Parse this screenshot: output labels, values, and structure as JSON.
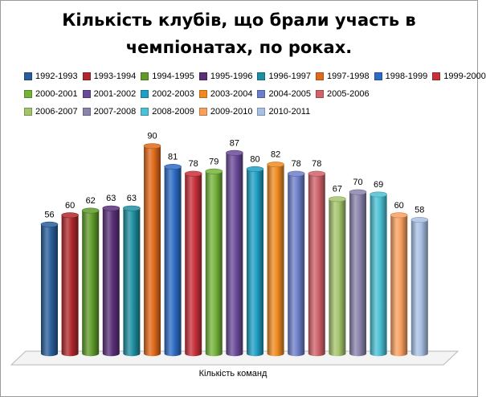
{
  "chart_data": {
    "type": "bar",
    "title": "Кількість клубів, що брали участь в чемпіонатах, по роках.",
    "xlabel": "Кількість команд",
    "ylabel": "",
    "ylim": [
      0,
      100
    ],
    "grid": false,
    "legend_position": "top",
    "categories": [
      "Кількість команд"
    ],
    "series": [
      {
        "name": "1992-1993",
        "values": [
          56
        ],
        "color": "#2a5e9a"
      },
      {
        "name": "1993-1994",
        "values": [
          60
        ],
        "color": "#b0282c"
      },
      {
        "name": "1994-1995",
        "values": [
          62
        ],
        "color": "#5f9a2a"
      },
      {
        "name": "1995-1996",
        "values": [
          63
        ],
        "color": "#5a2f78"
      },
      {
        "name": "1996-1997",
        "values": [
          63
        ],
        "color": "#1f8ea0"
      },
      {
        "name": "1997-1998",
        "values": [
          90
        ],
        "color": "#e06a1a"
      },
      {
        "name": "1998-1999",
        "values": [
          81
        ],
        "color": "#2c6cc4"
      },
      {
        "name": "1999-2000",
        "values": [
          78
        ],
        "color": "#c8303a"
      },
      {
        "name": "2000-2001",
        "values": [
          79
        ],
        "color": "#74b33a"
      },
      {
        "name": "2001-2002",
        "values": [
          87
        ],
        "color": "#6a4a98"
      },
      {
        "name": "2002-2003",
        "values": [
          80
        ],
        "color": "#1f9fc4"
      },
      {
        "name": "2003-2004",
        "values": [
          82
        ],
        "color": "#f08a20"
      },
      {
        "name": "2004-2005",
        "values": [
          78
        ],
        "color": "#6d7fc8"
      },
      {
        "name": "2005-2006",
        "values": [
          78
        ],
        "color": "#d0626a"
      },
      {
        "name": "2006-2007",
        "values": [
          67
        ],
        "color": "#a4c46c"
      },
      {
        "name": "2007-2008",
        "values": [
          70
        ],
        "color": "#8a84ac"
      },
      {
        "name": "2008-2009",
        "values": [
          69
        ],
        "color": "#4cc0d4"
      },
      {
        "name": "2009-2010",
        "values": [
          60
        ],
        "color": "#f8a060"
      },
      {
        "name": "2010-2011",
        "values": [
          58
        ],
        "color": "#a8c0e4"
      }
    ]
  }
}
